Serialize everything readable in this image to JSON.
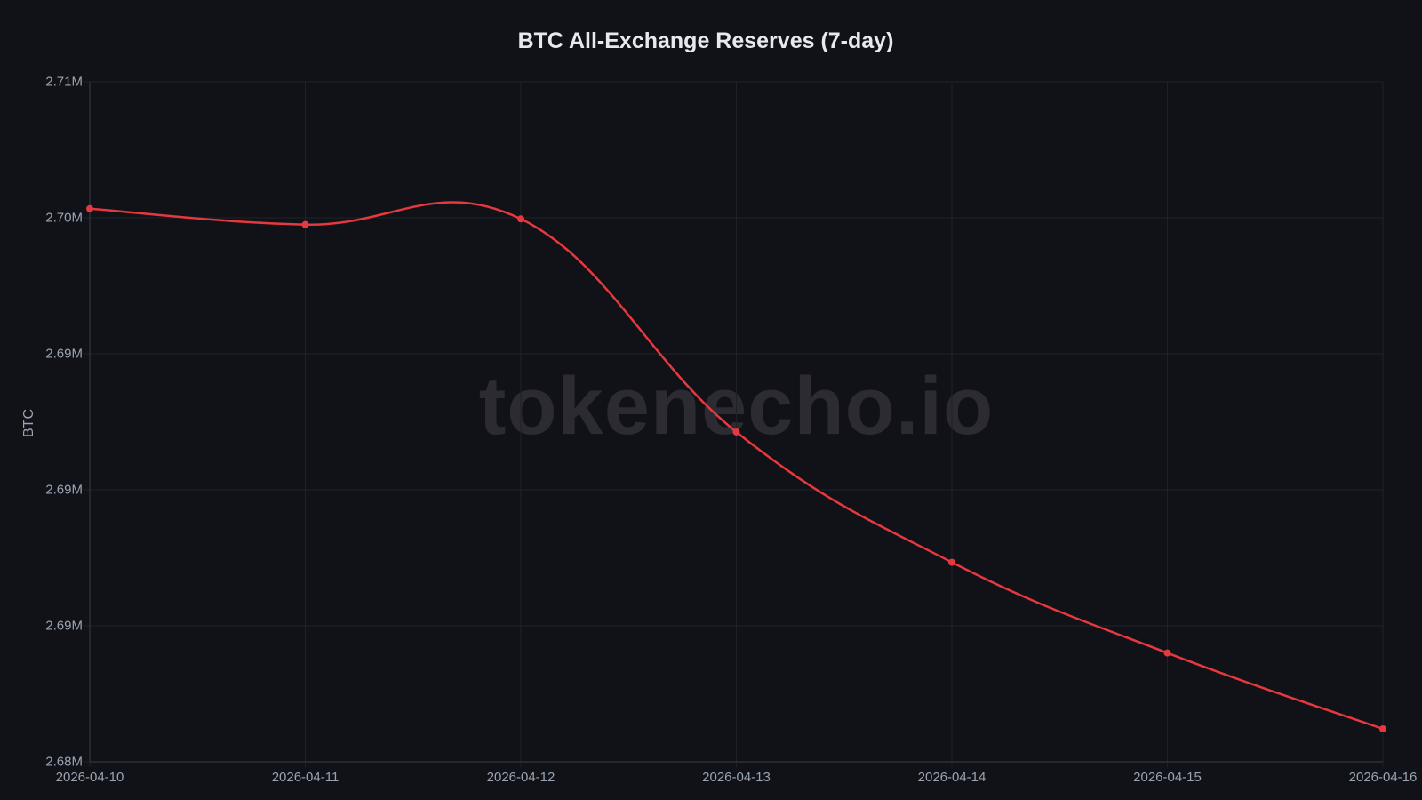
{
  "chart": {
    "title": "BTC All-Exchange Reserves (7-day)",
    "ylabel": "BTC",
    "watermark": "tokenecho.io",
    "y_tick_labels": [
      "2.71M",
      "2.70M",
      "2.69M",
      "2.69M",
      "2.69M",
      "2.68M"
    ],
    "x_tick_labels": [
      "2026-04-10",
      "2026-04-11",
      "2026-04-12",
      "2026-04-13",
      "2026-04-14",
      "2026-04-15",
      "2026-04-16"
    ],
    "colors": {
      "background": "#111217",
      "line": "#e5383f",
      "grid": "#1f2127",
      "title": "#e6e9ef",
      "tick": "#9aa3b2",
      "watermark": "#2b2b31"
    }
  },
  "chart_data": {
    "type": "line",
    "title": "BTC All-Exchange Reserves (7-day)",
    "xlabel": "",
    "ylabel": "BTC",
    "categories": [
      "2026-04-10",
      "2026-04-11",
      "2026-04-12",
      "2026-04-13",
      "2026-04-14",
      "2026-04-15",
      "2026-04-16"
    ],
    "series": [
      {
        "name": "BTC All-Exchange Reserves",
        "color": "#e5383f",
        "values": [
          2704400,
          2703700,
          2703950,
          2694550,
          2688800,
          2684800,
          2681450
        ]
      }
    ],
    "ylim": [
      2680000,
      2710000
    ],
    "y_ticks": [
      "2.71M",
      "2.70M",
      "2.69M",
      "2.69M",
      "2.69M",
      "2.68M"
    ],
    "grid": true,
    "smooth": true,
    "legend": "none",
    "annotations": [
      "watermark: tokenecho.io"
    ]
  }
}
